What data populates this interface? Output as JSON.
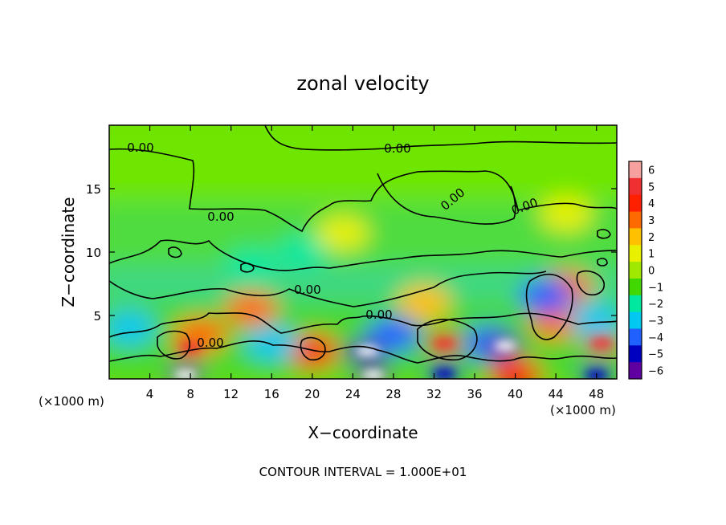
{
  "chart_data": {
    "type": "heatmap",
    "title": "zonal velocity",
    "xlabel": "X−coordinate",
    "ylabel": "Z−coordinate",
    "x_unit_left": "(×1000 m)",
    "x_unit_right": "(×1000 m)",
    "footer": "CONTOUR INTERVAL = 1.000E+01",
    "xlim": [
      0,
      50
    ],
    "ylim": [
      0,
      20
    ],
    "x_ticks": [
      4,
      8,
      12,
      16,
      20,
      24,
      28,
      32,
      36,
      40,
      44,
      48
    ],
    "y_ticks": [
      5,
      10,
      15
    ],
    "colorbar": {
      "levels": [
        6,
        5,
        4,
        3,
        2,
        1,
        0,
        -1,
        -2,
        -3,
        -4,
        -5,
        -6
      ],
      "labels": [
        "6",
        "5",
        "4",
        "3",
        "2",
        "1",
        "0",
        "−1",
        "−2",
        "−3",
        "−4",
        "−5",
        "−6"
      ],
      "colors": [
        "#f7a0a0",
        "#f03030",
        "#ff2000",
        "#ff6a00",
        "#ffc000",
        "#e8f000",
        "#a0e800",
        "#40d800",
        "#00e8a0",
        "#00c8f0",
        "#2060ff",
        "#0000c0",
        "#6000a0"
      ]
    },
    "contour_labels": [
      "0.00",
      "0.00",
      "0.00",
      "0.00",
      "0.00",
      "0.00",
      "0.00",
      "0.00"
    ],
    "features": [
      {
        "x": 8,
        "z": 2.5,
        "v": 5
      },
      {
        "x": 9,
        "z": 3.5,
        "v": 3
      },
      {
        "x": 14,
        "z": 5.5,
        "v": 3
      },
      {
        "x": 20,
        "z": 2.2,
        "v": 4
      },
      {
        "x": 33,
        "z": 2.8,
        "v": 5
      },
      {
        "x": 45,
        "z": 7.2,
        "v": 3
      },
      {
        "x": 48.5,
        "z": 2.8,
        "v": 5
      },
      {
        "x": 44,
        "z": 4.5,
        "v": 3
      },
      {
        "x": 31,
        "z": 6.0,
        "v": 2
      },
      {
        "x": 14,
        "z": 9.0,
        "v": -2
      },
      {
        "x": 19,
        "z": 10.0,
        "v": -2
      },
      {
        "x": 25,
        "z": 2.2,
        "v": -5
      },
      {
        "x": 25.5,
        "z": 2.2,
        "v": -6
      },
      {
        "x": 28,
        "z": 3.5,
        "v": -4
      },
      {
        "x": 37.5,
        "z": 2.8,
        "v": -4
      },
      {
        "x": 39,
        "z": 2.6,
        "v": -6
      },
      {
        "x": 43,
        "z": 6.5,
        "v": -4
      },
      {
        "x": 16,
        "z": 2.8,
        "v": -3
      },
      {
        "x": 2,
        "z": 4.0,
        "v": -3
      },
      {
        "x": 48,
        "z": 4.6,
        "v": -3
      },
      {
        "x": 7.5,
        "z": 0.3,
        "v": -6
      },
      {
        "x": 26,
        "z": 0.3,
        "v": -6
      },
      {
        "x": 33,
        "z": 0.4,
        "v": -5
      },
      {
        "x": 40,
        "z": 0.3,
        "v": 4
      },
      {
        "x": 48,
        "z": 0.3,
        "v": -5
      },
      {
        "x": 23,
        "z": 11.5,
        "v": 1
      },
      {
        "x": 45,
        "z": 13.0,
        "v": 1
      }
    ]
  }
}
